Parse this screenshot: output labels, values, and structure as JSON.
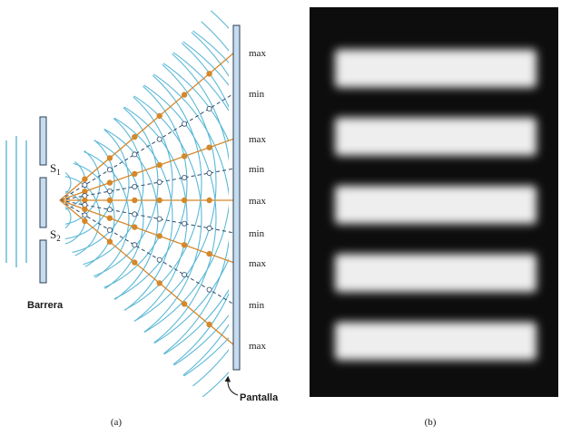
{
  "panel_a": {
    "screen_labels": [
      "max",
      "min",
      "max",
      "min",
      "max",
      "min",
      "max",
      "min",
      "max"
    ],
    "slit_1": {
      "letter": "S",
      "sub": "1"
    },
    "slit_2": {
      "letter": "S",
      "sub": "2"
    },
    "barrier_label": "Barrera",
    "screen_label": "Pantalla",
    "caption": "(a)"
  },
  "panel_b": {
    "bright_fringe_count": 5,
    "caption": "(b)"
  },
  "colors": {
    "wave": "#5bb8d6",
    "antinodal_line": "#d4882a",
    "nodal_line": "#2c4a6b",
    "barrier_fill": "#c5dcef",
    "barrier_stroke": "#2c3e55",
    "photo_background": "#0d0d0d",
    "fringe": "#eeeeee"
  }
}
